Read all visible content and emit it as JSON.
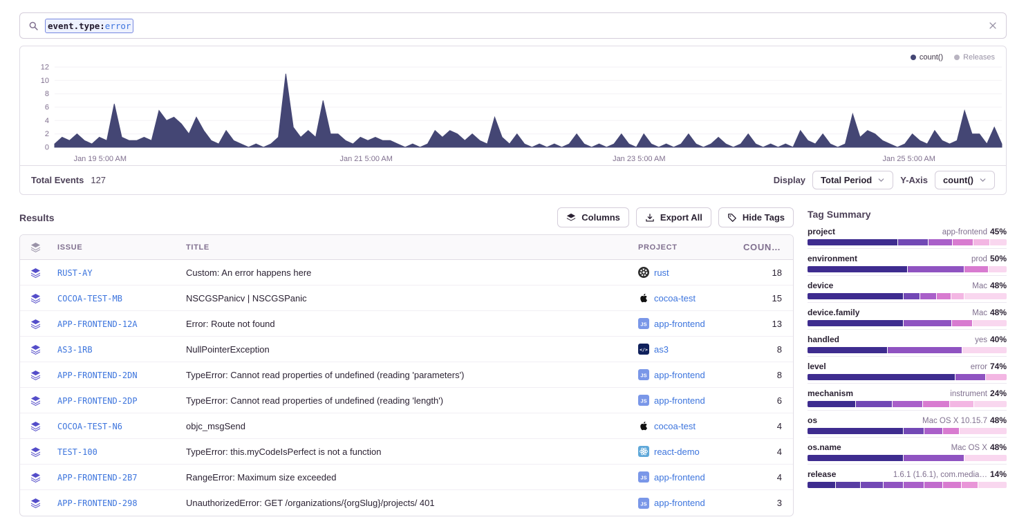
{
  "search": {
    "token_key": "event.type:",
    "token_value": "error"
  },
  "chart_panel": {
    "legend": [
      {
        "label": "count()",
        "color": "#444674"
      },
      {
        "label": "Releases",
        "color": "#b9b4c1"
      }
    ],
    "footer": {
      "total_events_label": "Total Events",
      "total_events_value": "127",
      "display_label": "Display",
      "display_value": "Total Period",
      "yaxis_label": "Y-Axis",
      "yaxis_value": "count()"
    }
  },
  "chart_data": {
    "type": "area",
    "series_name": "count()",
    "color": "#444674",
    "ylim": [
      0,
      12
    ],
    "yticks": [
      0,
      2,
      4,
      6,
      8,
      10,
      12
    ],
    "xticks": [
      {
        "label": "Jan 19 5:00 AM",
        "pos": 0.048
      },
      {
        "label": "Jan 21 5:00 AM",
        "pos": 0.329
      },
      {
        "label": "Jan 23 5:00 AM",
        "pos": 0.617
      },
      {
        "label": "Jan 25 5:00 AM",
        "pos": 0.902
      }
    ],
    "values": [
      0.5,
      1.5,
      1,
      2,
      1,
      0.5,
      1.5,
      1,
      6.5,
      1.5,
      1,
      1,
      1.5,
      1,
      5.5,
      4,
      4.5,
      3.5,
      2,
      4.5,
      2.5,
      1,
      0.5,
      2.5,
      1,
      0.5,
      0,
      0.5,
      0,
      0.5,
      1.5,
      11,
      3,
      1.5,
      2.5,
      1.5,
      7,
      2,
      2,
      1,
      0.5,
      1.5,
      1,
      1.5,
      1,
      1,
      0.5,
      0,
      0.5,
      0,
      0.5,
      2.5,
      1.5,
      2.5,
      2,
      1,
      2,
      1,
      0.5,
      4.5,
      1.5,
      0.5,
      2,
      0.5,
      0,
      0.5,
      0,
      0.5,
      0,
      0.5,
      2,
      0.5,
      0,
      0.5,
      0,
      0.5,
      2,
      0.5,
      0,
      2,
      0.5,
      0,
      0.5,
      0,
      0.5,
      2,
      0.5,
      0,
      0.5,
      1.5,
      0.5,
      0,
      0.5,
      2,
      0.5,
      0,
      0.5,
      0,
      0.5,
      0,
      2.5,
      1,
      0.5,
      2,
      0.5,
      0,
      0.5,
      5,
      1.5,
      2.5,
      2,
      1,
      0.5,
      0,
      0.5,
      2,
      1,
      0.5,
      2.5,
      1,
      0.5,
      1,
      5.5,
      2,
      2,
      0.5,
      3,
      0.5
    ]
  },
  "results": {
    "title": "Results",
    "columns_button": "Columns",
    "export_button": "Export All",
    "hide_tags_button": "Hide Tags",
    "table": {
      "headers": {
        "issue": "ISSUE",
        "title": "TITLE",
        "project": "PROJECT",
        "count": "COUNT()",
        "sort_arrow": "↓"
      },
      "rows": [
        {
          "issue": "RUST-AY",
          "title": "Custom: An error happens here",
          "project": "rust",
          "platform": "rust",
          "count": "18"
        },
        {
          "issue": "COCOA-TEST-MB",
          "title": "NSCGSPanicv | NSCGSPanic",
          "project": "cocoa-test",
          "platform": "apple",
          "count": "15"
        },
        {
          "issue": "APP-FRONTEND-12A",
          "title": "Error: Route not found",
          "project": "app-frontend",
          "platform": "javascript",
          "count": "13"
        },
        {
          "issue": "AS3-1RB",
          "title": "NullPointerException",
          "project": "as3",
          "platform": "actionscript",
          "count": "8"
        },
        {
          "issue": "APP-FRONTEND-2DN",
          "title": "TypeError: Cannot read properties of undefined (reading 'parameters')",
          "project": "app-frontend",
          "platform": "javascript",
          "count": "8"
        },
        {
          "issue": "APP-FRONTEND-2DP",
          "title": "TypeError: Cannot read properties of undefined (reading 'length')",
          "project": "app-frontend",
          "platform": "javascript",
          "count": "6"
        },
        {
          "issue": "COCOA-TEST-N6",
          "title": "objc_msgSend",
          "project": "cocoa-test",
          "platform": "apple",
          "count": "4"
        },
        {
          "issue": "TEST-100",
          "title": "TypeError: this.myCodeIsPerfect is not a function",
          "project": "react-demo",
          "platform": "react",
          "count": "4"
        },
        {
          "issue": "APP-FRONTEND-2B7",
          "title": "RangeError: Maximum size exceeded",
          "project": "app-frontend",
          "platform": "javascript",
          "count": "4"
        },
        {
          "issue": "APP-FRONTEND-298",
          "title": "UnauthorizedError: GET /organizations/{orgSlug}/projects/ 401",
          "project": "app-frontend",
          "platform": "javascript",
          "count": "3"
        }
      ]
    }
  },
  "tag_summary": {
    "title": "Tag Summary",
    "palette": [
      "#3E2C8F",
      "#583DA3",
      "#7248B5",
      "#8F53C1",
      "#A95FC9",
      "#C16BCD",
      "#D87BD0",
      "#E996D8",
      "#F3B6E3",
      "#F9D7EF"
    ],
    "tags": [
      {
        "name": "project",
        "value": "app-frontend",
        "percent": "45%",
        "segments": [
          {
            "pct": 45,
            "color": 0
          },
          {
            "pct": 15,
            "color": 2
          },
          {
            "pct": 12,
            "color": 4
          },
          {
            "pct": 10,
            "color": 6
          },
          {
            "pct": 8,
            "color": 8
          },
          {
            "pct": 10,
            "color": 9
          }
        ]
      },
      {
        "name": "environment",
        "value": "prod",
        "percent": "50%",
        "segments": [
          {
            "pct": 50,
            "color": 0
          },
          {
            "pct": 28,
            "color": 3
          },
          {
            "pct": 12,
            "color": 6
          },
          {
            "pct": 10,
            "color": 9
          }
        ]
      },
      {
        "name": "device",
        "value": "Mac",
        "percent": "48%",
        "segments": [
          {
            "pct": 48,
            "color": 0
          },
          {
            "pct": 8,
            "color": 2
          },
          {
            "pct": 8,
            "color": 4
          },
          {
            "pct": 7,
            "color": 6
          },
          {
            "pct": 6,
            "color": 8
          },
          {
            "pct": 23,
            "color": 9
          }
        ]
      },
      {
        "name": "device.family",
        "value": "Mac",
        "percent": "48%",
        "segments": [
          {
            "pct": 48,
            "color": 0
          },
          {
            "pct": 24,
            "color": 3
          },
          {
            "pct": 10,
            "color": 6
          },
          {
            "pct": 18,
            "color": 9
          }
        ]
      },
      {
        "name": "handled",
        "value": "yes",
        "percent": "40%",
        "segments": [
          {
            "pct": 40,
            "color": 0
          },
          {
            "pct": 37,
            "color": 3
          },
          {
            "pct": 23,
            "color": 9
          }
        ]
      },
      {
        "name": "level",
        "value": "error",
        "percent": "74%",
        "segments": [
          {
            "pct": 74,
            "color": 0
          },
          {
            "pct": 15,
            "color": 3
          },
          {
            "pct": 11,
            "color": 8
          }
        ]
      },
      {
        "name": "mechanism",
        "value": "instrument",
        "percent": "24%",
        "segments": [
          {
            "pct": 24,
            "color": 0
          },
          {
            "pct": 18,
            "color": 2
          },
          {
            "pct": 15,
            "color": 4
          },
          {
            "pct": 13,
            "color": 6
          },
          {
            "pct": 12,
            "color": 8
          },
          {
            "pct": 18,
            "color": 9
          }
        ]
      },
      {
        "name": "os",
        "value": "Mac OS X 10.15.7",
        "percent": "48%",
        "segments": [
          {
            "pct": 48,
            "color": 0
          },
          {
            "pct": 10,
            "color": 2
          },
          {
            "pct": 9,
            "color": 4
          },
          {
            "pct": 8,
            "color": 6
          },
          {
            "pct": 25,
            "color": 9
          }
        ]
      },
      {
        "name": "os.name",
        "value": "Mac OS X",
        "percent": "48%",
        "segments": [
          {
            "pct": 48,
            "color": 0
          },
          {
            "pct": 30,
            "color": 3
          },
          {
            "pct": 22,
            "color": 9
          }
        ]
      },
      {
        "name": "release",
        "value": "1.6.1 (1.6.1), com.media…",
        "percent": "14%",
        "segments": [
          {
            "pct": 14,
            "color": 0
          },
          {
            "pct": 12,
            "color": 1
          },
          {
            "pct": 11,
            "color": 2
          },
          {
            "pct": 10,
            "color": 3
          },
          {
            "pct": 10,
            "color": 4
          },
          {
            "pct": 9,
            "color": 5
          },
          {
            "pct": 9,
            "color": 6
          },
          {
            "pct": 8,
            "color": 7
          },
          {
            "pct": 17,
            "color": 9
          }
        ]
      }
    ]
  }
}
